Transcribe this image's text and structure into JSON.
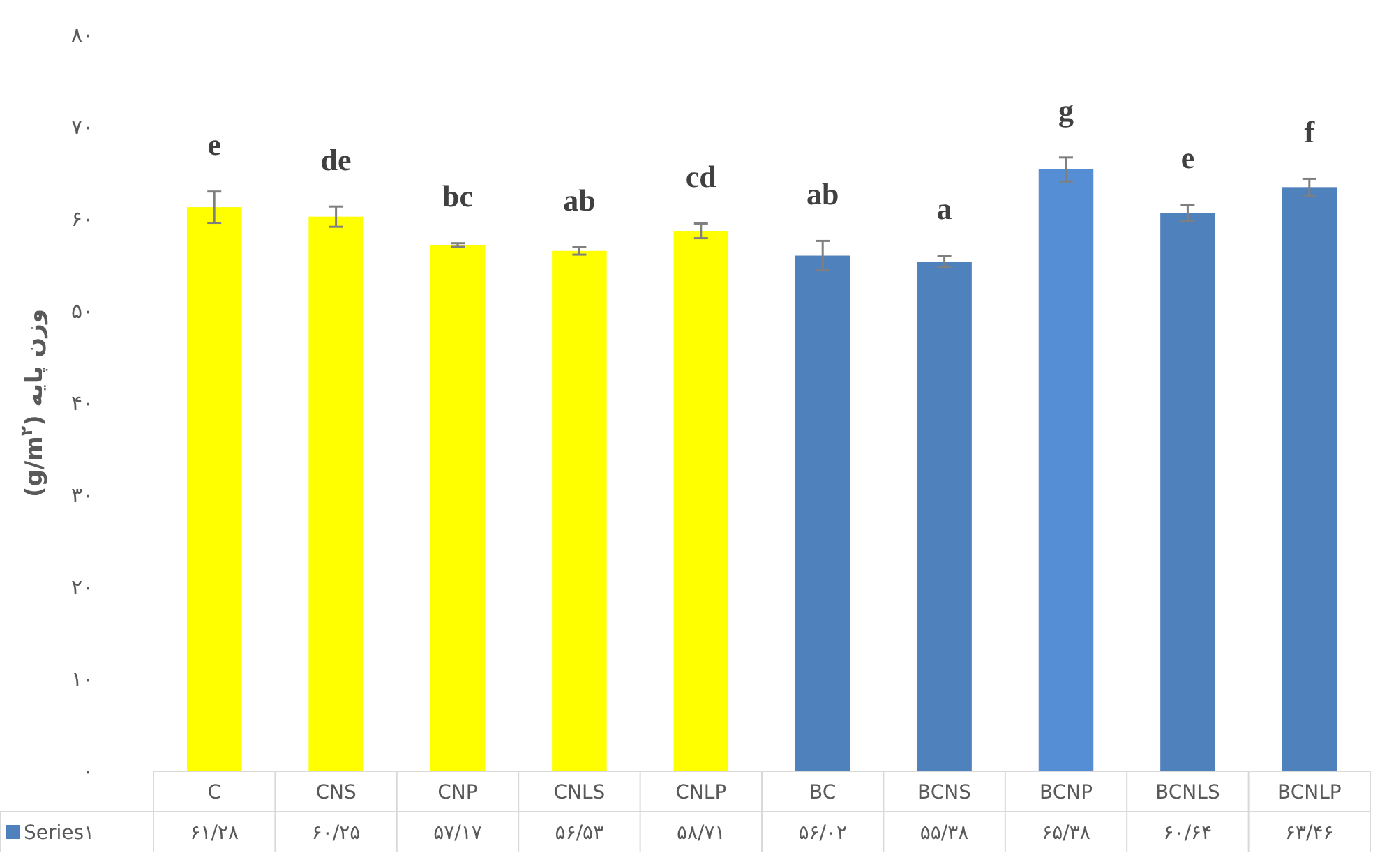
{
  "chart_data": {
    "type": "bar",
    "ylabel": "وزن پایه (g/m$^{۲}$)",
    "categories": [
      "C",
      "CNS",
      "CNP",
      "CNLS",
      "CNLP",
      "BC",
      "BCNS",
      "BCNP",
      "BCNLS",
      "BCNLP"
    ],
    "series": [
      {
        "name": "Series۱",
        "color": "#4f81bd",
        "colors": [
          "#ffff00",
          "#ffff00",
          "#ffff00",
          "#ffff00",
          "#ffff00",
          "#4f81bd",
          "#4f81bd",
          "#558ed5",
          "#4f81bd",
          "#4f81bd"
        ],
        "values": [
          61.28,
          60.25,
          57.17,
          56.53,
          58.71,
          56.02,
          55.38,
          65.38,
          60.64,
          63.46
        ],
        "errors": [
          1.7,
          1.1,
          0.2,
          0.4,
          0.8,
          1.6,
          0.6,
          1.3,
          0.9,
          0.9
        ],
        "value_labels": [
          "۶۱/۲۸",
          "۶۰/۲۵",
          "۵۷/۱۷",
          "۵۶/۵۳",
          "۵۸/۷۱",
          "۵۶/۰۲",
          "۵۵/۳۸",
          "۶۵/۳۸",
          "۶۰/۶۴",
          "۶۳/۴۶"
        ]
      }
    ],
    "ylim": [
      0,
      80
    ],
    "yticks": [
      {
        "value": 0,
        "label": "۰"
      },
      {
        "value": 10,
        "label": "۱۰"
      },
      {
        "value": 20,
        "label": "۲۰"
      },
      {
        "value": 30,
        "label": "۳۰"
      },
      {
        "value": 40,
        "label": "۴۰"
      },
      {
        "value": 50,
        "label": "۵۰"
      },
      {
        "value": 60,
        "label": "۶۰"
      },
      {
        "value": 70,
        "label": "۷۰"
      },
      {
        "value": 80,
        "label": "۸۰"
      }
    ],
    "legend": "bottom",
    "annotations": [
      "e",
      "de",
      "bc",
      "ab",
      "cd",
      "ab",
      "a",
      "g",
      "e",
      "f"
    ]
  }
}
